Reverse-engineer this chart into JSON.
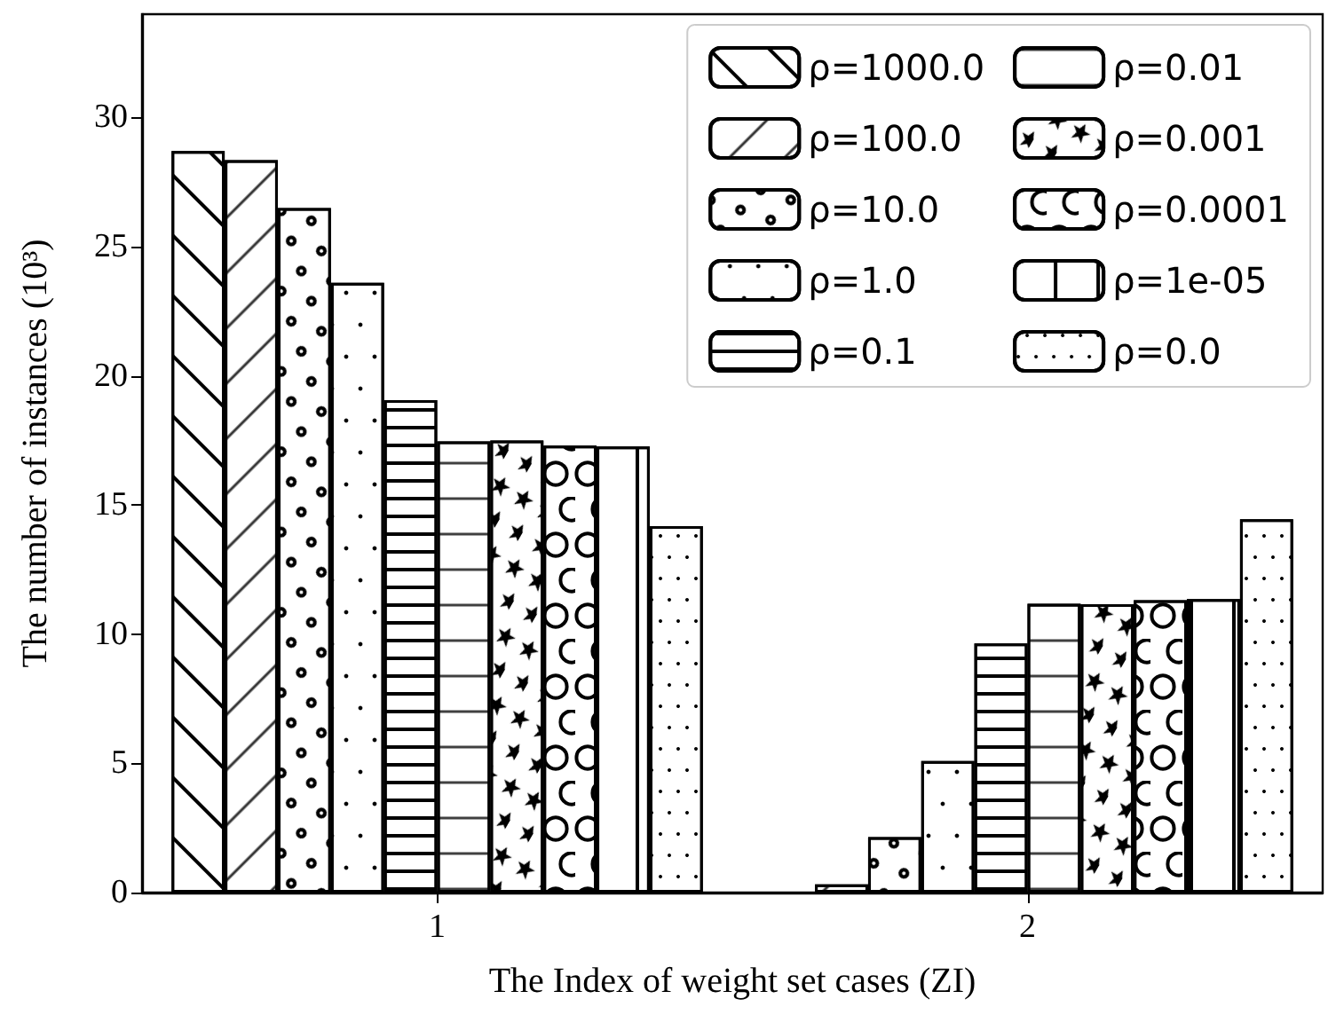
{
  "chart_data": {
    "type": "bar",
    "xlabel": "The Index of weight set cases (ZI)",
    "ylabel": "The number of instances (10³)",
    "categories": [
      "1",
      "2"
    ],
    "series": [
      {
        "name": "ρ=1000.0",
        "color": "#ffffff",
        "values": [
          28.7,
          0
        ]
      },
      {
        "name": "ρ=100.0",
        "color": "#ffffff",
        "values": [
          28.35,
          0.32
        ]
      },
      {
        "name": "ρ=10.0",
        "color": "#ffffff",
        "values": [
          26.5,
          2.15
        ]
      },
      {
        "name": "ρ=1.0",
        "color": "#ffffff",
        "values": [
          23.6,
          5.09
        ]
      },
      {
        "name": "ρ=0.1",
        "color": "#ffffff",
        "values": [
          19.06,
          9.64
        ]
      },
      {
        "name": "ρ=0.01",
        "color": "#ffffff",
        "values": [
          17.46,
          11.18
        ]
      },
      {
        "name": "ρ=0.001",
        "color": "#ffffff",
        "values": [
          17.5,
          11.16
        ]
      },
      {
        "name": "ρ=0.0001",
        "color": "#ffffff",
        "values": [
          17.3,
          11.32
        ]
      },
      {
        "name": "ρ=1e-05",
        "color": "#ffffff",
        "values": [
          17.27,
          11.36
        ]
      },
      {
        "name": "ρ=0.0",
        "color": "#ffffff",
        "values": [
          14.18,
          14.45
        ]
      }
    ],
    "ylim": [
      0,
      34
    ],
    "yticks": [
      0,
      5,
      10,
      15,
      20,
      25,
      30
    ],
    "grid": false,
    "legend": "top right"
  }
}
